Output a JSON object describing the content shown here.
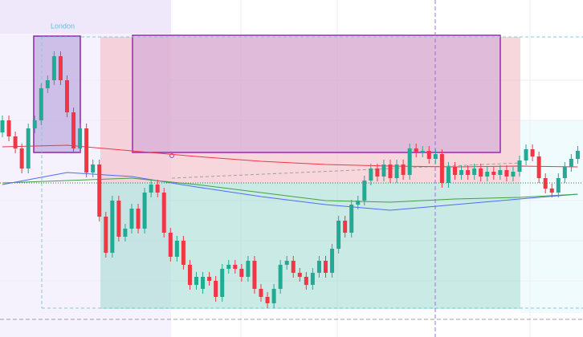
{
  "session_label": "London",
  "chart_data": {
    "type": "candlestick",
    "ylim": [
      0,
      420
    ],
    "up_color": "#22ab94",
    "down_color": "#f23645",
    "open": [
      255,
      270,
      250,
      235,
      210,
      260,
      270,
      310,
      320,
      350,
      320,
      280,
      235,
      260,
      205,
      215,
      150,
      105,
      170,
      125,
      135,
      160,
      135,
      180,
      190,
      180,
      130,
      100,
      120,
      90,
      65,
      60,
      75,
      70,
      50,
      85,
      90,
      85,
      75,
      95,
      60,
      50,
      42,
      60,
      90,
      95,
      80,
      75,
      65,
      80,
      95,
      80,
      110,
      145,
      130,
      165,
      170,
      195,
      210,
      200,
      215,
      198,
      215,
      202,
      235,
      230,
      232,
      222,
      228,
      192,
      212,
      202,
      208,
      202,
      210,
      200,
      206,
      202,
      208,
      200,
      206,
      220,
      234,
      225,
      198,
      185,
      180,
      198,
      212,
      222
    ],
    "high": [
      276,
      276,
      256,
      241,
      266,
      276,
      316,
      326,
      356,
      356,
      326,
      286,
      266,
      266,
      221,
      221,
      156,
      176,
      176,
      141,
      166,
      166,
      186,
      196,
      196,
      186,
      136,
      126,
      126,
      96,
      81,
      81,
      81,
      76,
      91,
      96,
      96,
      91,
      101,
      101,
      66,
      56,
      66,
      96,
      101,
      101,
      86,
      81,
      86,
      101,
      101,
      116,
      151,
      151,
      171,
      176,
      201,
      216,
      216,
      221,
      221,
      221,
      221,
      241,
      241,
      238,
      238,
      234,
      234,
      218,
      218,
      214,
      214,
      216,
      216,
      212,
      212,
      214,
      214,
      212,
      226,
      240,
      240,
      231,
      204,
      191,
      204,
      218,
      228,
      238
    ],
    "low": [
      249,
      244,
      229,
      204,
      204,
      254,
      264,
      304,
      314,
      314,
      274,
      229,
      229,
      199,
      199,
      144,
      99,
      99,
      119,
      119,
      129,
      129,
      129,
      174,
      174,
      124,
      94,
      94,
      84,
      59,
      59,
      54,
      64,
      44,
      44,
      79,
      79,
      69,
      69,
      54,
      44,
      36,
      36,
      54,
      84,
      74,
      69,
      59,
      59,
      74,
      74,
      74,
      104,
      124,
      124,
      159,
      164,
      189,
      194,
      194,
      192,
      192,
      196,
      196,
      224,
      224,
      216,
      216,
      186,
      186,
      196,
      196,
      196,
      196,
      194,
      194,
      196,
      196,
      194,
      194,
      200,
      214,
      219,
      192,
      179,
      174,
      174,
      192,
      206,
      216
    ],
    "close": [
      270,
      250,
      235,
      210,
      260,
      270,
      310,
      320,
      350,
      320,
      280,
      235,
      260,
      205,
      215,
      150,
      105,
      170,
      125,
      135,
      160,
      135,
      180,
      190,
      180,
      130,
      100,
      120,
      90,
      65,
      75,
      75,
      70,
      50,
      85,
      90,
      85,
      75,
      95,
      60,
      50,
      42,
      60,
      90,
      95,
      80,
      75,
      65,
      80,
      95,
      80,
      110,
      145,
      130,
      165,
      170,
      195,
      210,
      200,
      215,
      198,
      215,
      202,
      235,
      230,
      232,
      222,
      228,
      192,
      212,
      202,
      208,
      202,
      210,
      200,
      206,
      202,
      208,
      200,
      206,
      220,
      234,
      225,
      198,
      185,
      180,
      198,
      212,
      222,
      232
    ],
    "indicators": {
      "x": [
        0,
        10,
        20,
        30,
        40,
        50,
        60,
        70,
        80,
        89
      ],
      "series": [
        {
          "color": "#f23645",
          "values": [
            237,
            239,
            232,
            225,
            219,
            215,
            213,
            212,
            213,
            212
          ]
        },
        {
          "color": "#4c6ef5",
          "values": [
            190,
            205,
            200,
            187,
            175,
            165,
            158,
            165,
            172,
            178
          ]
        },
        {
          "color": "#43a047",
          "values": [
            192,
            195,
            198,
            190,
            180,
            170,
            168,
            172,
            174,
            178
          ]
        }
      ]
    }
  }
}
